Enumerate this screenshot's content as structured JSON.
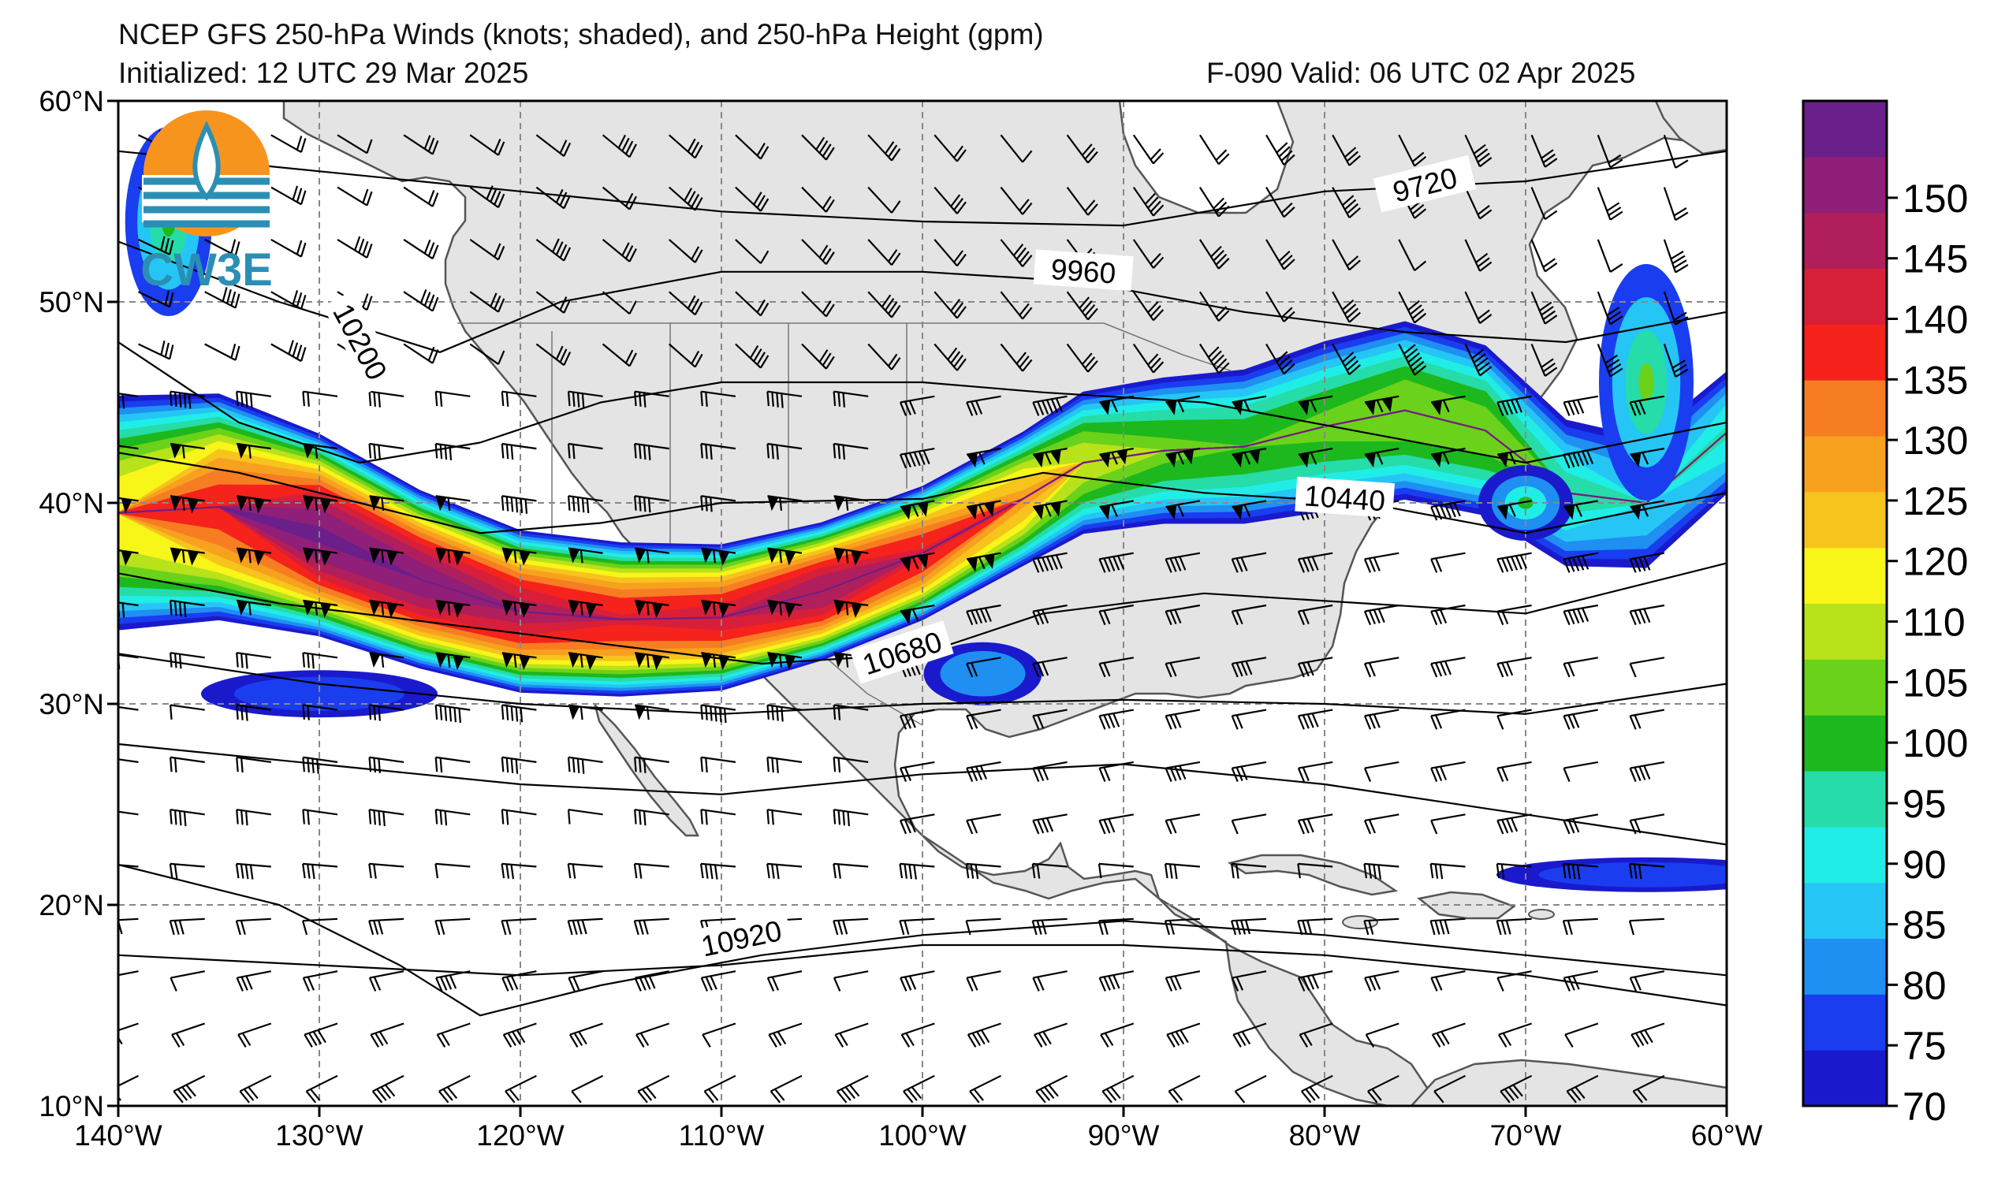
{
  "header": {
    "title": "NCEP GFS 250-hPa Winds (knots; shaded), and 250-hPa Height (gpm)",
    "init": "Initialized: 12 UTC 29 Mar 2025",
    "valid": "F-090  Valid: 06 UTC 02 Apr 2025"
  },
  "logo": {
    "text": "CW3E"
  },
  "map": {
    "lon_range": [
      -140,
      -60
    ],
    "lat_range": [
      10,
      60
    ],
    "lat_labels": [
      "10°N",
      "20°N",
      "30°N",
      "40°N",
      "50°N",
      "60°N"
    ],
    "lon_labels": [
      "140°W",
      "130°W",
      "120°W",
      "110°W",
      "100°W",
      "90°W",
      "80°W",
      "70°W",
      "60°W"
    ],
    "height_contours": [
      {
        "label": "9720"
      },
      {
        "label": "9960"
      },
      {
        "label": "10200"
      },
      {
        "label": "10440"
      },
      {
        "label": "10680"
      },
      {
        "label": "10920"
      }
    ]
  },
  "colorbar": {
    "levels": [
      "70",
      "75",
      "80",
      "85",
      "90",
      "95",
      "100",
      "105",
      "110",
      "120",
      "125",
      "130",
      "135",
      "140",
      "145",
      "150"
    ],
    "colors": [
      "#1a1acc",
      "#1a3df0",
      "#1f8ff2",
      "#25c6f5",
      "#20ede6",
      "#26dca8",
      "#1db81d",
      "#6ad21a",
      "#b8e21a",
      "#f8f518",
      "#f7c31d",
      "#f7a11f",
      "#f77d22",
      "#f6221c",
      "#d81f3a",
      "#b01f5c",
      "#8f1f78",
      "#6a1f8a"
    ]
  }
}
